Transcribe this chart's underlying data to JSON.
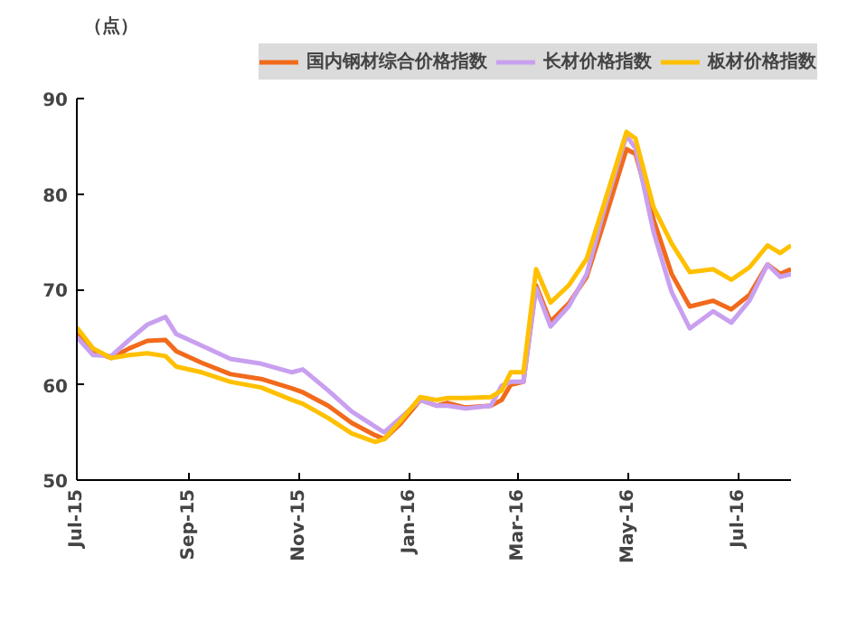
{
  "chart_data": {
    "type": "line",
    "ylabel": "（点）",
    "x": [
      "2015-07-01",
      "2015-07-10",
      "2015-07-20",
      "2015-07-30",
      "2015-08-09",
      "2015-08-19",
      "2015-08-25",
      "2015-09-08",
      "2015-09-24",
      "2015-10-11",
      "2015-10-28",
      "2015-11-03",
      "2015-11-17",
      "2015-11-30",
      "2015-12-13",
      "2015-12-18",
      "2015-12-27",
      "2016-01-07",
      "2016-01-16",
      "2016-01-22",
      "2016-02-01",
      "2016-02-15",
      "2016-02-21",
      "2016-02-26",
      "2016-03-04",
      "2016-03-11",
      "2016-03-19",
      "2016-03-29",
      "2016-04-08",
      "2016-04-18",
      "2016-04-30",
      "2016-05-05",
      "2016-05-15",
      "2016-05-25",
      "2016-06-04",
      "2016-06-17",
      "2016-06-27",
      "2016-07-07",
      "2016-07-17",
      "2016-07-24",
      "2016-07-30"
    ],
    "series": [
      {
        "name": "国内钢材综合价格指数",
        "color": "#f26a1b",
        "values": [
          65.3,
          63.5,
          62.8,
          63.8,
          64.6,
          64.7,
          63.5,
          62.3,
          61.1,
          60.6,
          59.6,
          59.2,
          57.8,
          56.0,
          54.7,
          54.3,
          55.9,
          58.4,
          57.8,
          58.1,
          57.6,
          57.8,
          58.4,
          60.0,
          60.3,
          70.4,
          66.6,
          68.5,
          71.3,
          77.3,
          84.7,
          84.2,
          77.3,
          71.6,
          68.2,
          68.8,
          67.9,
          69.4,
          72.6,
          71.6,
          72.1
        ]
      },
      {
        "name": "长材价格指数",
        "color": "#c9a0f0",
        "values": [
          65.0,
          63.1,
          63.0,
          64.7,
          66.3,
          67.1,
          65.3,
          64.1,
          62.7,
          62.2,
          61.3,
          61.6,
          59.4,
          57.2,
          55.6,
          55.0,
          56.5,
          58.4,
          57.8,
          57.8,
          57.5,
          57.8,
          59.9,
          60.3,
          60.3,
          70.1,
          66.1,
          68.2,
          71.6,
          78.6,
          86.1,
          84.8,
          76.0,
          69.7,
          65.9,
          67.7,
          66.5,
          68.8,
          72.6,
          71.3,
          71.6
        ]
      },
      {
        "name": "板材价格指数",
        "color": "#ffc000",
        "values": [
          66.0,
          63.8,
          62.8,
          63.1,
          63.3,
          63.0,
          61.9,
          61.3,
          60.3,
          59.7,
          58.4,
          58.0,
          56.5,
          54.9,
          54.0,
          54.3,
          56.2,
          58.7,
          58.4,
          58.6,
          58.6,
          58.7,
          59.4,
          61.3,
          61.3,
          72.1,
          68.6,
          70.4,
          73.2,
          79.2,
          86.5,
          85.8,
          78.6,
          74.8,
          71.8,
          72.1,
          71.0,
          72.3,
          74.6,
          73.8,
          74.6
        ]
      }
    ],
    "xlim": [
      "2015-07-01",
      "2016-07-30"
    ],
    "xticks": [
      {
        "value": "2015-07-01",
        "label": "Jul-15"
      },
      {
        "value": "2015-09-01",
        "label": "Sep-15"
      },
      {
        "value": "2015-11-01",
        "label": "Nov-15"
      },
      {
        "value": "2016-01-01",
        "label": "Jan-16"
      },
      {
        "value": "2016-03-01",
        "label": "Mar-16"
      },
      {
        "value": "2016-05-01",
        "label": "May-16"
      },
      {
        "value": "2016-07-01",
        "label": "Jul-16"
      }
    ],
    "ylim": [
      50,
      90
    ],
    "yticks": [
      50,
      60,
      70,
      80,
      90
    ],
    "legend": "top",
    "grid": false,
    "marker": "none",
    "line_style": "solid"
  }
}
